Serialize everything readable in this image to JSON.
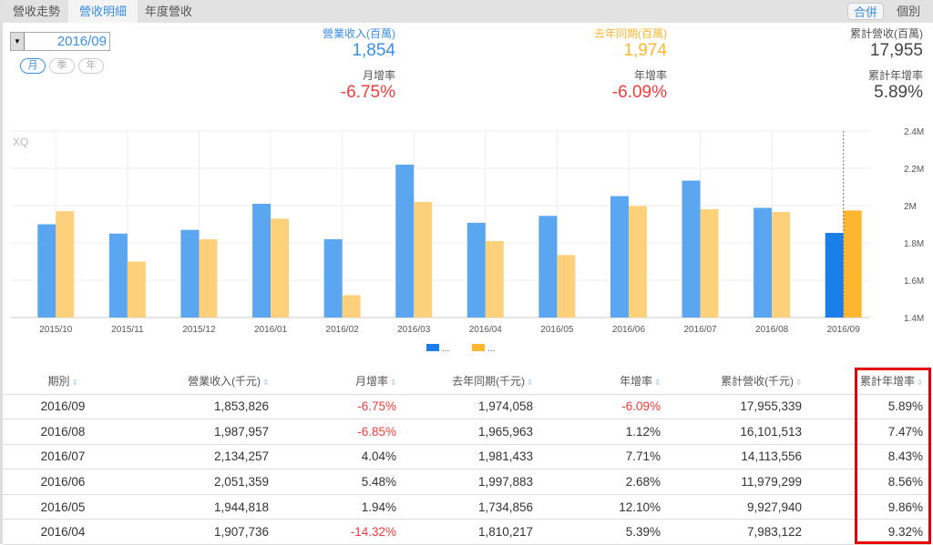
{
  "tabs": [
    "營收走勢",
    "營收明細",
    "年度營收"
  ],
  "active_tab": 1,
  "scope": [
    "合併",
    "個別"
  ],
  "date_value": "2016/09",
  "periods": [
    "月",
    "季",
    "年"
  ],
  "stats": {
    "revenue": {
      "label": "營業收入(百萬)",
      "value": "1,854"
    },
    "mom": {
      "label": "月增率",
      "value": "-6.75%"
    },
    "last_year": {
      "label": "去年同期(百萬)",
      "value": "1,974"
    },
    "yoy": {
      "label": "年增率",
      "value": "-6.09%"
    },
    "cum": {
      "label": "累計營收(百萬)",
      "value": "17,955"
    },
    "cum_yoy": {
      "label": "累計年增率",
      "value": "5.89%"
    }
  },
  "colors": {
    "blue": "#5aa6f0",
    "orange": "#fdd17c",
    "blue_hl": "#1a7de8",
    "orange_hl": "#fdb62f",
    "red": "#f23b3b"
  },
  "chart_data": {
    "type": "bar",
    "watermark": "XQ",
    "categories": [
      "2015/10",
      "2015/11",
      "2015/12",
      "2016/01",
      "2016/02",
      "2016/03",
      "2016/04",
      "2016/05",
      "2016/06",
      "2016/07",
      "2016/08",
      "2016/09"
    ],
    "series": [
      {
        "name": "...",
        "values": [
          1.9,
          1.85,
          1.87,
          2.01,
          1.82,
          2.22,
          1.908,
          1.945,
          2.051,
          2.134,
          1.988,
          1.854
        ]
      },
      {
        "name": "...",
        "values": [
          1.97,
          1.7,
          1.82,
          1.93,
          1.52,
          2.02,
          1.81,
          1.735,
          1.998,
          1.981,
          1.966,
          1.974
        ]
      }
    ],
    "yticks": [
      "1.4M",
      "1.6M",
      "1.8M",
      "2M",
      "2.2M",
      "2.4M"
    ],
    "ylim": [
      1.4,
      2.4
    ]
  },
  "table": {
    "headers": [
      "期別",
      "營業收入(千元)",
      "月增率",
      "去年同期(千元)",
      "年增率",
      "累計營收(千元)",
      "累計年增率"
    ],
    "rows": [
      [
        "2016/09",
        "1,853,826",
        "-6.75%",
        "1,974,058",
        "-6.09%",
        "17,955,339",
        "5.89%"
      ],
      [
        "2016/08",
        "1,987,957",
        "-6.85%",
        "1,965,963",
        "1.12%",
        "16,101,513",
        "7.47%"
      ],
      [
        "2016/07",
        "2,134,257",
        "4.04%",
        "1,981,433",
        "7.71%",
        "14,113,556",
        "8.43%"
      ],
      [
        "2016/06",
        "2,051,359",
        "5.48%",
        "1,997,883",
        "2.68%",
        "11,979,299",
        "8.56%"
      ],
      [
        "2016/05",
        "1,944,818",
        "1.94%",
        "1,734,856",
        "12.10%",
        "9,927,940",
        "9.86%"
      ],
      [
        "2016/04",
        "1,907,736",
        "-14.32%",
        "1,810,217",
        "5.39%",
        "7,983,122",
        "9.32%"
      ]
    ]
  }
}
